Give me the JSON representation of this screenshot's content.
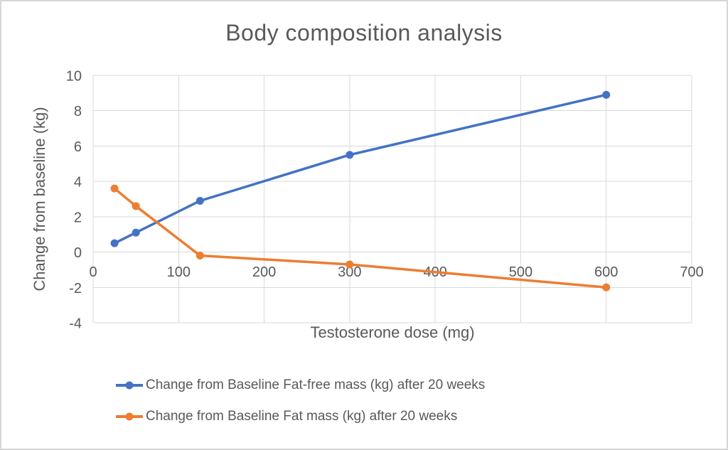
{
  "chart_data": {
    "type": "line",
    "title": "Body composition analysis",
    "xlabel": "Testosterone dose (mg)",
    "ylabel": "Change from baseline (kg)",
    "x": [
      25,
      50,
      125,
      300,
      600
    ],
    "series": [
      {
        "name": "Change from Baseline Fat-free mass (kg) after 20 weeks",
        "color": "#4472C4",
        "values": [
          0.5,
          1.1,
          2.9,
          5.5,
          8.9
        ]
      },
      {
        "name": "Change from Baseline Fat mass (kg) after 20 weeks",
        "color": "#ED7D31",
        "values": [
          3.6,
          2.6,
          -0.2,
          -0.7,
          -2.0
        ]
      }
    ],
    "xlim": [
      0,
      700
    ],
    "ylim": [
      -4,
      10
    ],
    "x_ticks": [
      0,
      100,
      200,
      300,
      400,
      500,
      600,
      700
    ],
    "y_ticks": [
      10,
      8,
      6,
      4,
      2,
      0,
      -2,
      -4
    ],
    "grid": true,
    "legend_position": "bottom",
    "marker": "circle",
    "colors": {
      "text": "#595959",
      "gridline": "#D9D9D9",
      "background": "#FFFFFF",
      "border": "#D6D6D6"
    }
  }
}
